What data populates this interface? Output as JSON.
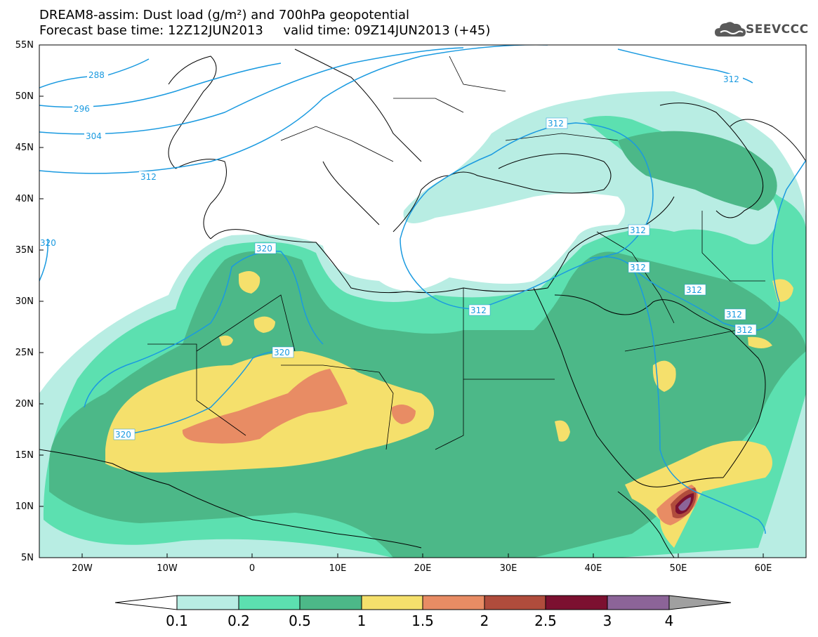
{
  "title": {
    "line1": "DREAM8-assim: Dust load (g/m²) and 700hPa geopotential",
    "line2": "Forecast base time: 12Z12JUN2013     valid time: 09Z14JUN2013 (+45)"
  },
  "logo": {
    "text": "SEEVCCC",
    "icon": "cloud-icon"
  },
  "axes": {
    "lat_labels": [
      "55N",
      "50N",
      "45N",
      "40N",
      "35N",
      "30N",
      "25N",
      "20N",
      "15N",
      "10N",
      "5N"
    ],
    "lon_labels": [
      "20W",
      "10W",
      "0",
      "10E",
      "20E",
      "30E",
      "40E",
      "50E",
      "60E"
    ]
  },
  "geopotential_labels": [
    "288",
    "296",
    "304",
    "312",
    "320",
    "320",
    "320",
    "312",
    "312",
    "312",
    "312",
    "312",
    "312",
    "312",
    "312",
    "320"
  ],
  "colorbar": {
    "labels": [
      "0.1",
      "0.2",
      "0.5",
      "1",
      "1.5",
      "2",
      "2.5",
      "3",
      "4"
    ],
    "colors": [
      "#ffffff",
      "#b8ede3",
      "#5ce0b0",
      "#4cb888",
      "#f5e06c",
      "#e88c64",
      "#b04c3c",
      "#7c1030",
      "#8c6498",
      "#a0a0a0"
    ]
  },
  "colors": {
    "contour": "#1a9ae0",
    "coast": "#000000"
  }
}
